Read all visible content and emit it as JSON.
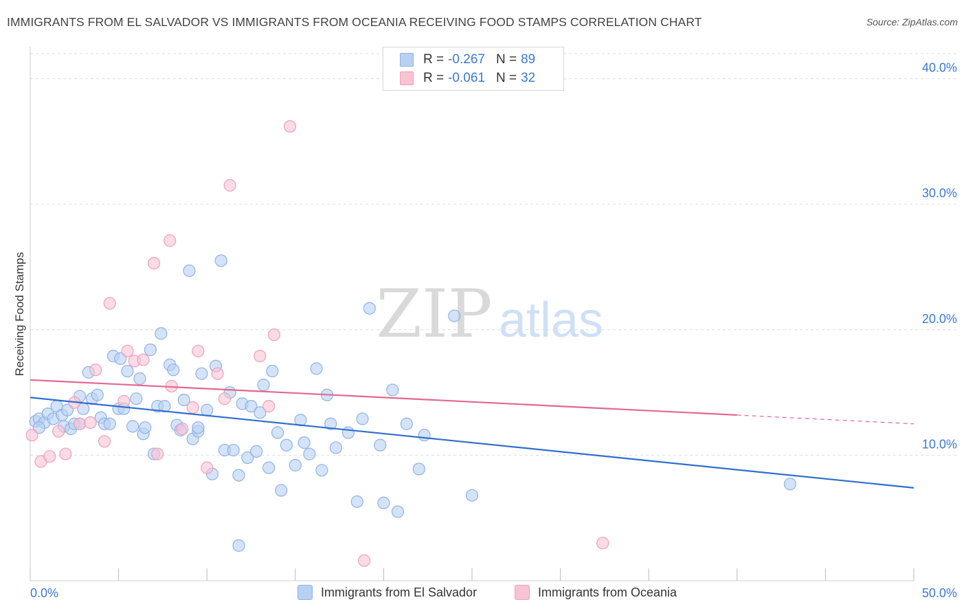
{
  "header": {
    "title": "IMMIGRANTS FROM EL SALVADOR VS IMMIGRANTS FROM OCEANIA RECEIVING FOOD STAMPS CORRELATION CHART",
    "source": "Source: ZipAtlas.com"
  },
  "watermark": {
    "zip": "ZIP",
    "atlas": "atlas"
  },
  "stats_legend": {
    "rows": [
      {
        "r_label": "R =",
        "r_value": "-0.267",
        "n_label": "N =",
        "n_value": "89"
      },
      {
        "r_label": "R =",
        "r_value": "-0.061",
        "n_label": "N =",
        "n_value": "32"
      }
    ]
  },
  "colors": {
    "blue_fill": "#b8d0f2",
    "blue_stroke": "#8fb2e6",
    "blue_line": "#2f6fce",
    "pink_fill": "#f8c3d3",
    "pink_stroke": "#eea0b9",
    "pink_line": "#e0688f",
    "tick_label": "#3b78d4",
    "grid": "#dddddd"
  },
  "chart_data": {
    "type": "scatter",
    "title": "IMMIGRANTS FROM EL SALVADOR VS IMMIGRANTS FROM OCEANIA RECEIVING FOOD STAMPS CORRELATION CHART",
    "xlabel": "",
    "ylabel": "Receiving Food Stamps",
    "xlim": [
      0,
      50
    ],
    "ylim": [
      0,
      42
    ],
    "x_tick_labels": [
      "0.0%",
      "50.0%"
    ],
    "y_ticks": [
      10,
      20,
      30,
      40
    ],
    "y_tick_labels": [
      "10.0%",
      "20.0%",
      "30.0%",
      "40.0%"
    ],
    "grid": true,
    "legend_position": "bottom",
    "series": [
      {
        "name": "Immigrants from El Salvador",
        "color": "#b8d0f2",
        "trend": {
          "x": [
            0,
            50
          ],
          "y": [
            14.6,
            7.4
          ],
          "dashed_from": null
        },
        "points": [
          [
            0.3,
            12.7
          ],
          [
            0.5,
            12.9
          ],
          [
            0.8,
            12.6
          ],
          [
            1.0,
            13.3
          ],
          [
            1.3,
            12.9
          ],
          [
            1.5,
            13.9
          ],
          [
            1.8,
            13.2
          ],
          [
            1.9,
            12.3
          ],
          [
            2.1,
            13.6
          ],
          [
            2.3,
            12.1
          ],
          [
            2.5,
            12.5
          ],
          [
            2.8,
            14.7
          ],
          [
            3.0,
            13.7
          ],
          [
            3.3,
            16.6
          ],
          [
            3.5,
            14.5
          ],
          [
            3.8,
            14.8
          ],
          [
            4.0,
            13.0
          ],
          [
            4.2,
            12.5
          ],
          [
            4.5,
            12.5
          ],
          [
            4.7,
            17.9
          ],
          [
            5.0,
            13.7
          ],
          [
            5.1,
            17.7
          ],
          [
            5.3,
            13.7
          ],
          [
            5.5,
            16.7
          ],
          [
            5.8,
            12.3
          ],
          [
            6.0,
            14.5
          ],
          [
            6.2,
            16.1
          ],
          [
            6.4,
            11.7
          ],
          [
            6.5,
            12.2
          ],
          [
            6.8,
            18.4
          ],
          [
            7.0,
            10.1
          ],
          [
            7.2,
            13.9
          ],
          [
            7.4,
            19.7
          ],
          [
            7.6,
            13.9
          ],
          [
            7.9,
            17.2
          ],
          [
            8.1,
            16.8
          ],
          [
            8.3,
            12.4
          ],
          [
            8.5,
            12.0
          ],
          [
            8.7,
            14.4
          ],
          [
            9.0,
            24.7
          ],
          [
            9.2,
            11.3
          ],
          [
            9.5,
            11.9
          ],
          [
            9.7,
            16.5
          ],
          [
            10.0,
            13.6
          ],
          [
            10.3,
            8.5
          ],
          [
            10.5,
            17.1
          ],
          [
            10.8,
            25.5
          ],
          [
            11.0,
            10.4
          ],
          [
            11.3,
            15.0
          ],
          [
            11.5,
            10.4
          ],
          [
            11.8,
            8.4
          ],
          [
            12.0,
            14.1
          ],
          [
            12.3,
            9.8
          ],
          [
            12.5,
            13.9
          ],
          [
            12.8,
            10.3
          ],
          [
            13.0,
            13.4
          ],
          [
            13.2,
            15.6
          ],
          [
            13.5,
            9.0
          ],
          [
            13.7,
            16.7
          ],
          [
            14.0,
            11.8
          ],
          [
            14.2,
            7.2
          ],
          [
            14.5,
            10.8
          ],
          [
            15.0,
            9.2
          ],
          [
            15.3,
            12.8
          ],
          [
            15.5,
            11.0
          ],
          [
            15.8,
            10.1
          ],
          [
            16.2,
            16.9
          ],
          [
            16.5,
            8.8
          ],
          [
            16.8,
            14.8
          ],
          [
            17.0,
            12.5
          ],
          [
            17.3,
            10.6
          ],
          [
            18.0,
            11.8
          ],
          [
            18.5,
            6.3
          ],
          [
            18.8,
            12.9
          ],
          [
            19.2,
            21.7
          ],
          [
            19.8,
            10.8
          ],
          [
            20.0,
            6.2
          ],
          [
            20.5,
            15.2
          ],
          [
            20.8,
            5.5
          ],
          [
            21.3,
            12.5
          ],
          [
            22.0,
            8.9
          ],
          [
            22.3,
            11.6
          ],
          [
            24.0,
            21.1
          ],
          [
            25.0,
            6.8
          ],
          [
            11.8,
            2.8
          ],
          [
            43.0,
            7.7
          ],
          [
            0.5,
            12.2
          ],
          [
            2.8,
            12.5
          ],
          [
            9.5,
            12.2
          ]
        ]
      },
      {
        "name": "Immigrants from Oceania",
        "color": "#f8c3d3",
        "trend": {
          "x": [
            0,
            50
          ],
          "y": [
            16.0,
            12.5
          ],
          "dashed_from": 40.0
        },
        "points": [
          [
            0.1,
            11.6
          ],
          [
            0.6,
            9.5
          ],
          [
            1.1,
            9.9
          ],
          [
            1.6,
            11.9
          ],
          [
            2.0,
            10.1
          ],
          [
            2.5,
            14.2
          ],
          [
            2.8,
            12.5
          ],
          [
            3.4,
            12.6
          ],
          [
            3.7,
            16.8
          ],
          [
            4.2,
            11.1
          ],
          [
            4.5,
            22.1
          ],
          [
            5.3,
            14.3
          ],
          [
            5.5,
            18.3
          ],
          [
            5.9,
            17.5
          ],
          [
            6.4,
            17.6
          ],
          [
            7.0,
            25.3
          ],
          [
            7.2,
            10.1
          ],
          [
            7.9,
            27.1
          ],
          [
            8.0,
            15.5
          ],
          [
            8.6,
            12.1
          ],
          [
            9.2,
            13.8
          ],
          [
            9.5,
            18.3
          ],
          [
            10.0,
            9.0
          ],
          [
            10.6,
            16.5
          ],
          [
            11.0,
            14.5
          ],
          [
            11.3,
            31.5
          ],
          [
            13.0,
            17.9
          ],
          [
            13.5,
            13.9
          ],
          [
            13.8,
            19.6
          ],
          [
            14.7,
            36.2
          ],
          [
            18.9,
            1.6
          ],
          [
            32.4,
            3.0
          ]
        ]
      }
    ]
  }
}
